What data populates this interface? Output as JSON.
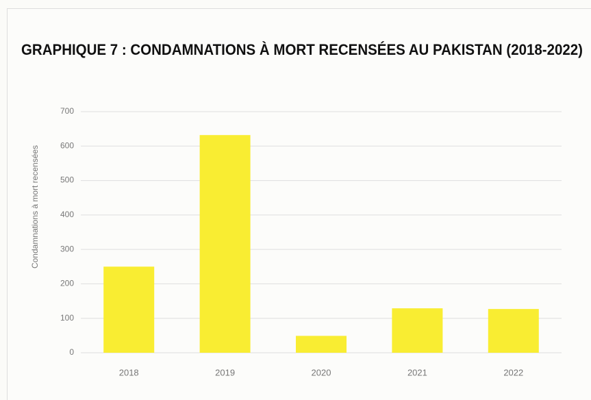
{
  "chart_data": {
    "type": "bar",
    "title": "GRAPHIQUE 7 : CONDAMNATIONS À MORT RECENSÉES AU PAKISTAN (2018-2022)",
    "y_label": "Condamnations à mort recensées",
    "categories": [
      "2018",
      "2019",
      "2020",
      "2021",
      "2022"
    ],
    "values": [
      250,
      632,
      49,
      129,
      127
    ],
    "color": "#f9ed32",
    "ylim": [
      0,
      700
    ],
    "yticks": [
      0,
      100,
      200,
      300,
      400,
      500,
      600,
      700
    ],
    "grid": true
  }
}
